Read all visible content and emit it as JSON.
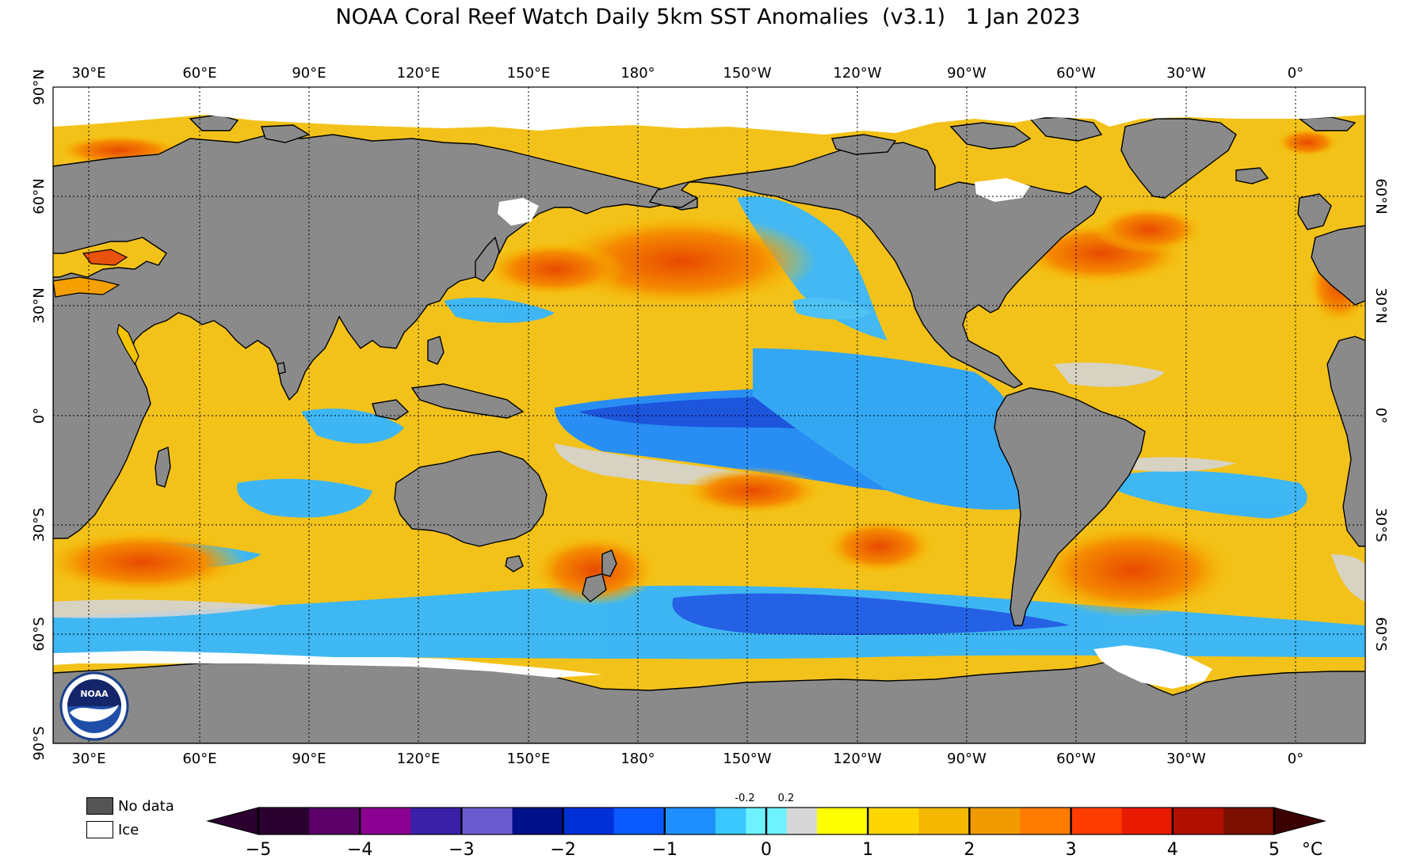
{
  "title": "NOAA Coral Reef Watch Daily 5km SST Anomalies  (v3.1)   1 Jan 2023",
  "longitude_ticks": [
    "30°E",
    "60°E",
    "90°E",
    "120°E",
    "150°E",
    "180°",
    "150°W",
    "120°W",
    "90°W",
    "60°W",
    "30°W",
    "0°"
  ],
  "latitude_ticks_left": [
    "90°N",
    "60°N",
    "30°N",
    "0°",
    "30°S",
    "60°S",
    "90°S"
  ],
  "latitude_ticks_right": [
    "60°N",
    "30°N",
    "0°",
    "30°S",
    "60°S"
  ],
  "legend": {
    "no_data_label": "No data",
    "ice_label": "Ice",
    "no_data_color": "#555555",
    "ice_color": "#ffffff"
  },
  "colorbar": {
    "tick_labels": [
      "−5",
      "−4",
      "−3",
      "−2",
      "−1",
      "0",
      "1",
      "2",
      "3",
      "4",
      "5"
    ],
    "neutral_labels": [
      "-0.2",
      "0.2"
    ],
    "unit": "°C",
    "range": [
      -5,
      5
    ],
    "colors": [
      "#2b0030",
      "#5a0066",
      "#8a0090",
      "#3a1fa8",
      "#6a5cd0",
      "#000f8a",
      "#0030d8",
      "#0a5aff",
      "#1f8fff",
      "#38c8ff",
      "#6ef2ff",
      "#d7d7d7",
      "#ffff00",
      "#ffd700",
      "#f5b800",
      "#f09a00",
      "#ff7a00",
      "#ff3c00",
      "#e81a00",
      "#b01000",
      "#7a0f00",
      "#3a0000"
    ]
  },
  "colors": {
    "land": "#8a8a8a",
    "ocean_warm": "#f5c400",
    "ocean_cool": "#27a9ff",
    "neutral": "#d6d6d6",
    "ice": "#ffffff"
  },
  "logo": {
    "text": "NOAA"
  }
}
